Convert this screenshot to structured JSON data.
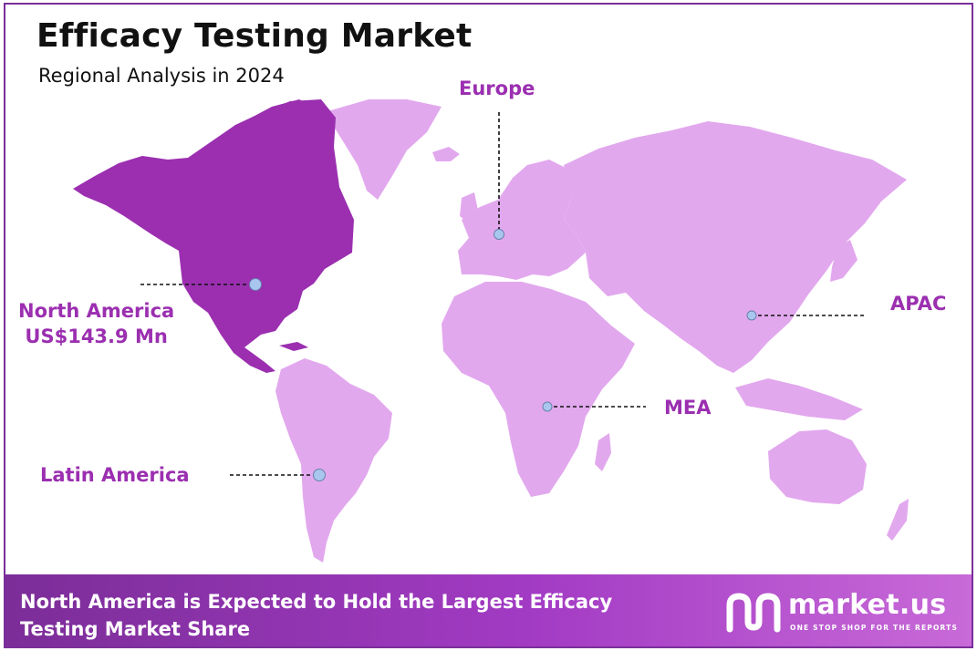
{
  "title": "Efficacy Testing Market",
  "subtitle": "Regional Analysis in 2024",
  "colors": {
    "highlight_region": "#9b2fb0",
    "other_regions": "#e2a8ee",
    "label_text": "#9b2fb0",
    "marker_fill": "#a9c7ee",
    "frame_border": "#7a2f9a"
  },
  "regions": {
    "north_america": {
      "name": "North America",
      "value": "US$143.9 Mn",
      "highlighted": true
    },
    "europe": {
      "name": "Europe"
    },
    "apac": {
      "name": "APAC"
    },
    "mea": {
      "name": "MEA"
    },
    "latin_america": {
      "name": "Latin America"
    }
  },
  "footer": {
    "headline": "North America is Expected to Hold the Largest Efficacy Testing Market Share"
  },
  "brand": {
    "name": "market.us",
    "tagline": "ONE STOP SHOP FOR THE REPORTS",
    "logo_icon": "market-us-logo-icon"
  }
}
